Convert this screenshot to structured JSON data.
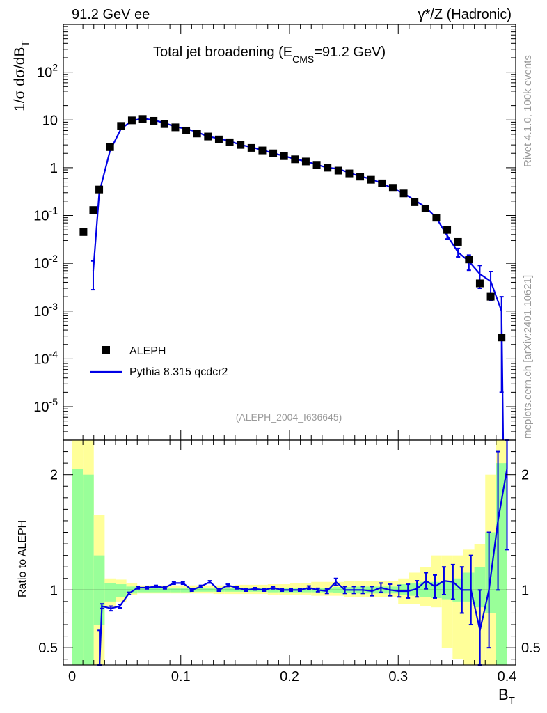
{
  "header": {
    "left": "91.2 GeV ee",
    "right": "γ*/Z (Hadronic)"
  },
  "side_labels": {
    "rivet": "Rivet 4.1.0,  100k events",
    "mcplots": "mcplots.cern.ch [arXiv:2401.10621]"
  },
  "analysis_tag": "(ALEPH_2004_I636645)",
  "chart_data": {
    "type": "scatter",
    "title": "Total jet broadening (E",
    "title_sub": "CMS",
    "title_tail": "=91.2 GeV)",
    "ylabel": "1/σ  dσ/dB",
    "ylabel_sub": "T",
    "xlabel": "B",
    "xlabel_sub": "T",
    "xlim": [
      -0.008,
      0.408
    ],
    "ylim_log": [
      2e-06,
      1000
    ],
    "ratio_ylabel": "Ratio to ALEPH",
    "ratio_ylim": [
      0.35,
      2.3
    ],
    "x_ticks": [
      "0",
      "0.1",
      "0.2",
      "0.3",
      "0.4"
    ],
    "x_tick_values": [
      0,
      0.1,
      0.2,
      0.3,
      0.4
    ],
    "y_tick_labels": [
      {
        "base": "10",
        "exp": "-5",
        "value": 1e-05
      },
      {
        "base": "10",
        "exp": "-4",
        "value": 0.0001
      },
      {
        "base": "10",
        "exp": "-3",
        "value": 0.001
      },
      {
        "base": "10",
        "exp": "-2",
        "value": 0.01
      },
      {
        "base": "10",
        "exp": "-1",
        "value": 0.1
      },
      {
        "base": "1",
        "exp": "",
        "value": 1
      },
      {
        "base": "10",
        "exp": "",
        "value": 10
      },
      {
        "base": "10",
        "exp": "2",
        "value": 100
      }
    ],
    "ratio_ticks": [
      "0.5",
      "1",
      "2"
    ],
    "ratio_tick_values": [
      0.5,
      1,
      2
    ],
    "legend": [
      {
        "label": "ALEPH",
        "marker": "square",
        "color": "#000000"
      },
      {
        "label": "Pythia 8.315 qcdcr2",
        "marker": "line",
        "color": "#0000e6"
      }
    ],
    "series": [
      {
        "name": "ALEPH",
        "x": [
          0.0105,
          0.0195,
          0.025,
          0.035,
          0.045,
          0.055,
          0.065,
          0.075,
          0.085,
          0.095,
          0.105,
          0.115,
          0.125,
          0.135,
          0.145,
          0.155,
          0.165,
          0.175,
          0.185,
          0.195,
          0.205,
          0.215,
          0.225,
          0.235,
          0.245,
          0.255,
          0.265,
          0.275,
          0.285,
          0.295,
          0.305,
          0.315,
          0.325,
          0.335,
          0.345,
          0.355,
          0.365,
          0.375,
          0.385,
          0.395
        ],
        "y": [
          0.045,
          0.13,
          0.35,
          2.7,
          7.5,
          9.8,
          10.5,
          9.6,
          8.2,
          7.0,
          6.0,
          5.2,
          4.5,
          3.9,
          3.4,
          3.0,
          2.6,
          2.3,
          2.0,
          1.75,
          1.5,
          1.35,
          1.15,
          1.0,
          0.87,
          0.76,
          0.65,
          0.56,
          0.47,
          0.38,
          0.29,
          0.19,
          0.14,
          0.09,
          0.05,
          0.028,
          0.012,
          0.0038,
          0.002,
          0.00028
        ]
      },
      {
        "name": "Pythia 8.315 qcdcr2",
        "x": [
          0.0195,
          0.025,
          0.035,
          0.045,
          0.055,
          0.065,
          0.075,
          0.085,
          0.095,
          0.105,
          0.115,
          0.125,
          0.135,
          0.145,
          0.155,
          0.165,
          0.175,
          0.185,
          0.195,
          0.205,
          0.215,
          0.225,
          0.235,
          0.245,
          0.255,
          0.265,
          0.275,
          0.285,
          0.295,
          0.305,
          0.315,
          0.325,
          0.335,
          0.345,
          0.355,
          0.365,
          0.375,
          0.385,
          0.395
        ],
        "y": [
          0.007,
          0.3,
          2.3,
          6.5,
          9.6,
          10.8,
          9.9,
          8.7,
          7.2,
          6.5,
          5.6,
          4.5,
          4.1,
          3.6,
          3.0,
          2.7,
          2.35,
          2.0,
          1.77,
          1.52,
          1.37,
          1.16,
          1.0,
          0.95,
          0.78,
          0.66,
          0.58,
          0.47,
          0.37,
          0.29,
          0.21,
          0.15,
          0.09,
          0.038,
          0.017,
          0.011,
          0.006,
          0.0042,
          0.001
        ],
        "yerr_rel": [
          0.6,
          0.03,
          0.03,
          0.02,
          0.02,
          0.02,
          0.02,
          0.02,
          0.02,
          0.02,
          0.02,
          0.02,
          0.02,
          0.02,
          0.02,
          0.02,
          0.02,
          0.02,
          0.02,
          0.02,
          0.02,
          0.02,
          0.02,
          0.03,
          0.03,
          0.03,
          0.03,
          0.04,
          0.05,
          0.05,
          0.06,
          0.07,
          0.1,
          0.15,
          0.2,
          0.35,
          0.5,
          0.6,
          1.0
        ]
      }
    ],
    "ratio": {
      "x": [
        0.0245,
        0.0265,
        0.0345,
        0.0425,
        0.0505,
        0.0585,
        0.0665,
        0.0745,
        0.0825,
        0.0905,
        0.0985,
        0.1065,
        0.1145,
        0.1225,
        0.1305,
        0.1385,
        0.1465,
        0.1545,
        0.1625,
        0.1705,
        0.1785,
        0.1865,
        0.1945,
        0.2025,
        0.2105,
        0.2185,
        0.2265,
        0.2345,
        0.2425,
        0.2505,
        0.2585,
        0.2665,
        0.2745,
        0.2825,
        0.2905,
        0.2985,
        0.3065,
        0.3145,
        0.3225,
        0.3305,
        0.3385,
        0.3465,
        0.3545,
        0.3625,
        0.3705,
        0.3785,
        0.3865
      ],
      "y": [
        0.35,
        0.86,
        0.84,
        0.86,
        0.97,
        1.02,
        1.02,
        1.03,
        1.02,
        1.06,
        1.06,
        1.0,
        1.03,
        1.07,
        1.0,
        1.04,
        1.02,
        1.0,
        1.01,
        1.0,
        1.02,
        1.0,
        1.0,
        1.0,
        1.02,
        1.0,
        0.99,
        1.07,
        1.0,
        1.0,
        1.0,
        0.99,
        1.02,
        1.0,
        0.99,
        0.99,
        1.01,
        1.08,
        1.03,
        1.08,
        1.07,
        1.0,
        1.0,
        0.65,
        1.0,
        1.6,
        2.05
      ],
      "err": [
        0.3,
        0.02,
        0.02,
        0.015,
        0.01,
        0.01,
        0.01,
        0.01,
        0.01,
        0.01,
        0.01,
        0.01,
        0.01,
        0.01,
        0.01,
        0.01,
        0.01,
        0.01,
        0.01,
        0.01,
        0.01,
        0.01,
        0.01,
        0.01,
        0.015,
        0.015,
        0.02,
        0.03,
        0.03,
        0.03,
        0.03,
        0.04,
        0.04,
        0.05,
        0.05,
        0.06,
        0.07,
        0.07,
        0.1,
        0.12,
        0.15,
        0.2,
        0.3,
        0.35,
        0.5,
        0.6,
        0.7
      ]
    },
    "bands": {
      "edges": [
        0,
        0.01,
        0.02,
        0.03,
        0.04,
        0.05,
        0.06,
        0.07,
        0.08,
        0.09,
        0.1,
        0.11,
        0.12,
        0.13,
        0.14,
        0.15,
        0.16,
        0.17,
        0.18,
        0.19,
        0.2,
        0.21,
        0.22,
        0.23,
        0.24,
        0.25,
        0.26,
        0.27,
        0.28,
        0.29,
        0.3,
        0.31,
        0.32,
        0.33,
        0.34,
        0.35,
        0.36,
        0.37,
        0.38,
        0.39,
        0.4
      ],
      "green_lo": [
        0.35,
        0.35,
        0.7,
        0.9,
        0.94,
        0.97,
        0.98,
        0.98,
        0.98,
        0.98,
        0.98,
        0.985,
        0.985,
        0.985,
        0.985,
        0.985,
        0.985,
        0.985,
        0.98,
        0.98,
        0.98,
        0.98,
        0.98,
        0.98,
        0.975,
        0.975,
        0.97,
        0.97,
        0.97,
        0.97,
        0.96,
        0.95,
        0.94,
        0.93,
        0.92,
        0.9,
        0.9,
        0.85,
        0.8,
        0.35
      ],
      "green_hi": [
        2.05,
        2.0,
        1.3,
        1.06,
        1.05,
        1.03,
        1.02,
        1.02,
        1.02,
        1.02,
        1.02,
        1.015,
        1.015,
        1.015,
        1.015,
        1.015,
        1.015,
        1.015,
        1.02,
        1.02,
        1.02,
        1.02,
        1.02,
        1.02,
        1.025,
        1.025,
        1.03,
        1.03,
        1.03,
        1.03,
        1.05,
        1.06,
        1.07,
        1.07,
        1.08,
        1.1,
        1.15,
        1.2,
        1.5,
        2.1
      ],
      "yellow_lo": [
        0.35,
        0.35,
        0.35,
        0.85,
        0.9,
        0.96,
        0.97,
        0.97,
        0.97,
        0.97,
        0.97,
        0.97,
        0.97,
        0.965,
        0.965,
        0.965,
        0.965,
        0.965,
        0.96,
        0.96,
        0.96,
        0.96,
        0.95,
        0.95,
        0.95,
        0.94,
        0.94,
        0.94,
        0.94,
        0.94,
        0.88,
        0.88,
        0.86,
        0.85,
        0.5,
        0.4,
        0.35,
        0.35,
        0.35,
        0.35
      ],
      "yellow_hi": [
        2.3,
        2.3,
        1.65,
        1.1,
        1.09,
        1.06,
        1.04,
        1.04,
        1.04,
        1.04,
        1.04,
        1.04,
        1.04,
        1.04,
        1.04,
        1.045,
        1.045,
        1.045,
        1.05,
        1.05,
        1.06,
        1.06,
        1.07,
        1.07,
        1.07,
        1.08,
        1.08,
        1.08,
        1.08,
        1.08,
        1.1,
        1.15,
        1.2,
        1.3,
        1.3,
        1.3,
        1.35,
        1.4,
        2.0,
        2.3
      ]
    }
  }
}
